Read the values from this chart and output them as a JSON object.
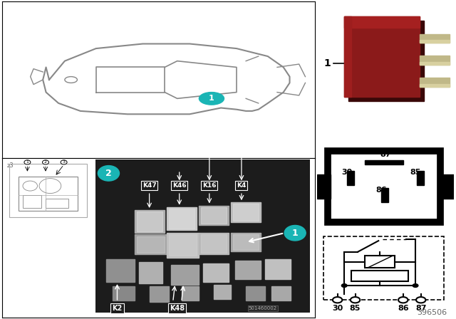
{
  "bg_color": "#ffffff",
  "teal_color": "#1ab5b5",
  "part_number": "396506",
  "image_number": "501460002",
  "fuse_labels": [
    "K47",
    "K46",
    "K16",
    "K4"
  ],
  "bottom_labels": [
    "K2",
    "K48"
  ],
  "pin_labels": [
    "87",
    "30",
    "85",
    "86"
  ],
  "schematic_pins": [
    "30",
    "85",
    "86",
    "87"
  ]
}
